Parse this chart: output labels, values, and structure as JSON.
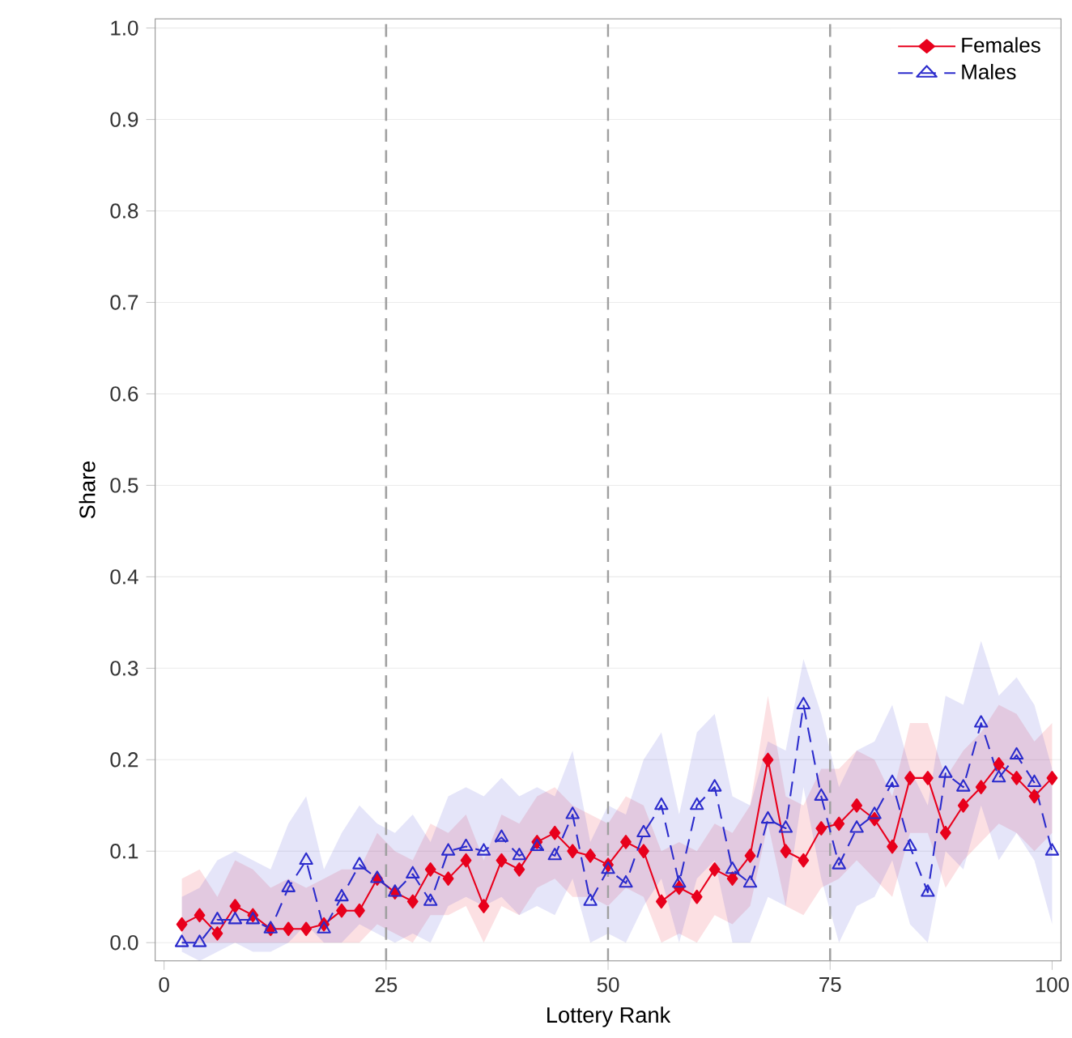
{
  "chart_data": {
    "type": "line",
    "xlabel": "Lottery Rank",
    "ylabel": "Share",
    "x": [
      2,
      4,
      6,
      8,
      10,
      12,
      14,
      16,
      18,
      20,
      22,
      24,
      26,
      28,
      30,
      32,
      34,
      36,
      38,
      40,
      42,
      44,
      46,
      48,
      50,
      52,
      54,
      56,
      58,
      60,
      62,
      64,
      66,
      68,
      70,
      72,
      74,
      76,
      78,
      80,
      82,
      84,
      86,
      88,
      90,
      92,
      94,
      96,
      98,
      100
    ],
    "series": [
      {
        "name": "Females",
        "color": "#e8001c",
        "marker": "diamond",
        "line_style": "solid",
        "values": [
          0.02,
          0.03,
          0.01,
          0.04,
          0.03,
          0.015,
          0.015,
          0.015,
          0.02,
          0.035,
          0.035,
          0.07,
          0.055,
          0.045,
          0.08,
          0.07,
          0.09,
          0.04,
          0.09,
          0.08,
          0.11,
          0.12,
          0.1,
          0.095,
          0.085,
          0.11,
          0.1,
          0.045,
          0.06,
          0.05,
          0.08,
          0.07,
          0.095,
          0.2,
          0.1,
          0.09,
          0.125,
          0.13,
          0.15,
          0.135,
          0.105,
          0.18,
          0.18,
          0.12,
          0.15,
          0.17,
          0.195,
          0.18,
          0.16,
          0.18
        ],
        "lower": [
          0,
          0,
          0,
          0,
          0,
          0,
          0,
          0,
          0,
          0,
          0,
          0.02,
          0.01,
          0,
          0.03,
          0.03,
          0.04,
          0,
          0.04,
          0.03,
          0.06,
          0.07,
          0.05,
          0.05,
          0.04,
          0.06,
          0.05,
          0,
          0.01,
          0,
          0.03,
          0.02,
          0.04,
          0.13,
          0.04,
          0.03,
          0.06,
          0.07,
          0.09,
          0.07,
          0.05,
          0.12,
          0.12,
          0.06,
          0.09,
          0.11,
          0.13,
          0.12,
          0.1,
          0.12
        ],
        "upper": [
          0.07,
          0.08,
          0.05,
          0.09,
          0.08,
          0.06,
          0.07,
          0.06,
          0.07,
          0.08,
          0.08,
          0.12,
          0.1,
          0.09,
          0.13,
          0.12,
          0.14,
          0.09,
          0.14,
          0.13,
          0.16,
          0.17,
          0.15,
          0.14,
          0.13,
          0.16,
          0.15,
          0.1,
          0.11,
          0.1,
          0.13,
          0.12,
          0.15,
          0.27,
          0.16,
          0.15,
          0.19,
          0.19,
          0.21,
          0.2,
          0.16,
          0.24,
          0.24,
          0.18,
          0.21,
          0.23,
          0.26,
          0.25,
          0.22,
          0.24
        ]
      },
      {
        "name": "Males",
        "color": "#2b2bcc",
        "marker": "triangle",
        "line_style": "dashed",
        "values": [
          0.0,
          0.0,
          0.025,
          0.025,
          0.025,
          0.015,
          0.06,
          0.09,
          0.015,
          0.05,
          0.085,
          0.07,
          0.055,
          0.075,
          0.045,
          0.1,
          0.105,
          0.1,
          0.115,
          0.095,
          0.105,
          0.095,
          0.14,
          0.045,
          0.08,
          0.065,
          0.12,
          0.15,
          0.065,
          0.15,
          0.17,
          0.08,
          0.065,
          0.135,
          0.125,
          0.26,
          0.16,
          0.085,
          0.125,
          0.14,
          0.175,
          0.105,
          0.055,
          0.185,
          0.17,
          0.24,
          0.18,
          0.205,
          0.175,
          0.1
        ],
        "lower": [
          -0.01,
          -0.02,
          -0.01,
          0,
          -0.01,
          -0.01,
          0,
          0.02,
          0,
          0,
          0.02,
          0.01,
          0,
          0.01,
          0,
          0.04,
          0.05,
          0.04,
          0.05,
          0.03,
          0.04,
          0.03,
          0.07,
          0,
          0.01,
          0,
          0.04,
          0.07,
          0,
          0.07,
          0.09,
          0,
          0,
          0.05,
          0.04,
          0.17,
          0.07,
          0,
          0.04,
          0.05,
          0.09,
          0.02,
          0,
          0.1,
          0.08,
          0.15,
          0.09,
          0.12,
          0.09,
          0.02
        ],
        "upper": [
          0.05,
          0.06,
          0.09,
          0.1,
          0.09,
          0.08,
          0.13,
          0.16,
          0.08,
          0.12,
          0.15,
          0.13,
          0.12,
          0.14,
          0.11,
          0.16,
          0.17,
          0.16,
          0.18,
          0.16,
          0.17,
          0.16,
          0.21,
          0.11,
          0.15,
          0.14,
          0.2,
          0.23,
          0.14,
          0.23,
          0.25,
          0.16,
          0.15,
          0.22,
          0.21,
          0.31,
          0.25,
          0.17,
          0.21,
          0.22,
          0.26,
          0.19,
          0.15,
          0.27,
          0.26,
          0.33,
          0.27,
          0.29,
          0.26,
          0.19
        ]
      }
    ],
    "xlim": [
      -1,
      101
    ],
    "ylim": [
      -0.02,
      1.01
    ],
    "xticks": [
      0,
      25,
      50,
      75,
      100
    ],
    "yticks": [
      {
        "value": 0,
        "label": "0.0"
      },
      {
        "value": 0.1,
        "label": "0.1"
      },
      {
        "value": 0.2,
        "label": "0.2"
      },
      {
        "value": 0.3,
        "label": "0.3"
      },
      {
        "value": 0.4,
        "label": "0.4"
      },
      {
        "value": 0.5,
        "label": "0.5"
      },
      {
        "value": 0.6,
        "label": "0.6"
      },
      {
        "value": 0.7,
        "label": "0.7"
      },
      {
        "value": 0.8,
        "label": "0.8"
      },
      {
        "value": 0.9,
        "label": "0.9"
      },
      {
        "value": 1.0,
        "label": "1.0"
      }
    ],
    "ref_lines": [
      {
        "axis": "x",
        "value": 25,
        "color": "#a0a0a0",
        "line_style": "dashed"
      },
      {
        "axis": "x",
        "value": 50,
        "color": "#a0a0a0",
        "line_style": "dashed"
      },
      {
        "axis": "x",
        "value": 75,
        "color": "#a0a0a0",
        "line_style": "dashed"
      }
    ],
    "grid": "y",
    "legend": "top right"
  }
}
